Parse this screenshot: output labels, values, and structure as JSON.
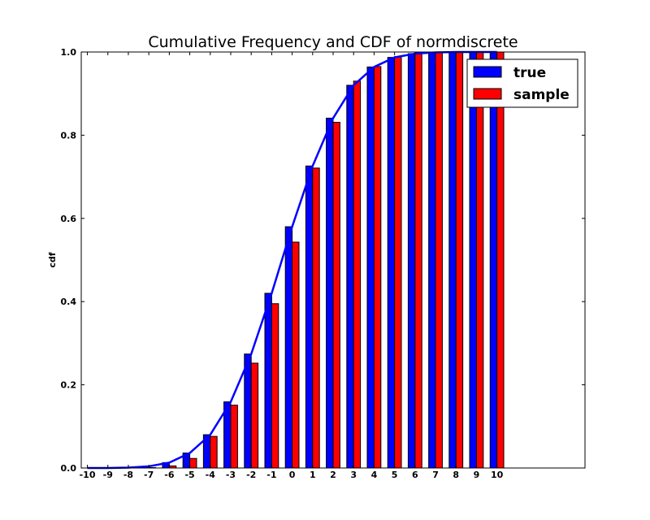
{
  "chart_data": {
    "type": "bar",
    "title": "Cumulative Frequency and CDF of normdiscrete",
    "xlabel": "",
    "ylabel": "cdf",
    "categories": [
      "-10",
      "-9",
      "-8",
      "-7",
      "-6",
      "-5",
      "-4",
      "-3",
      "-2",
      "-1",
      "0",
      "1",
      "2",
      "3",
      "4",
      "5",
      "6",
      "7",
      "8",
      "9",
      "10"
    ],
    "x": [
      -10,
      -9,
      -8,
      -7,
      -6,
      -5,
      -4,
      -3,
      -2,
      -1,
      0,
      1,
      2,
      3,
      4,
      5,
      6,
      7,
      8,
      9,
      10
    ],
    "xlim": [
      -10.3,
      14.3
    ],
    "ylim": [
      0.0,
      1.0
    ],
    "yticks": [
      "0.0",
      "0.2",
      "0.4",
      "0.6",
      "0.8",
      "1.0"
    ],
    "series": [
      {
        "name": "true",
        "color": "#0000ff",
        "values": [
          0.0,
          0.0,
          0.001,
          0.004,
          0.013,
          0.036,
          0.08,
          0.159,
          0.274,
          0.42,
          0.58,
          0.726,
          0.841,
          0.92,
          0.964,
          0.987,
          0.996,
          0.999,
          1.0,
          1.0,
          1.0
        ]
      },
      {
        "name": "sample",
        "color": "#ff0000",
        "values": [
          0.0,
          0.0,
          0.0,
          0.001,
          0.005,
          0.023,
          0.076,
          0.151,
          0.252,
          0.395,
          0.543,
          0.721,
          0.831,
          0.93,
          0.965,
          0.989,
          0.998,
          1.0,
          1.0,
          1.0,
          1.0
        ]
      }
    ],
    "line": {
      "color": "#0000ff",
      "values": [
        0.0,
        0.0,
        0.001,
        0.004,
        0.013,
        0.036,
        0.08,
        0.159,
        0.274,
        0.42,
        0.58,
        0.726,
        0.841,
        0.92,
        0.964,
        0.987,
        0.996,
        0.999,
        1.0,
        1.0,
        1.0
      ]
    },
    "legend": {
      "position": "top-right",
      "entries": [
        "true",
        "sample"
      ]
    },
    "grid": false
  }
}
